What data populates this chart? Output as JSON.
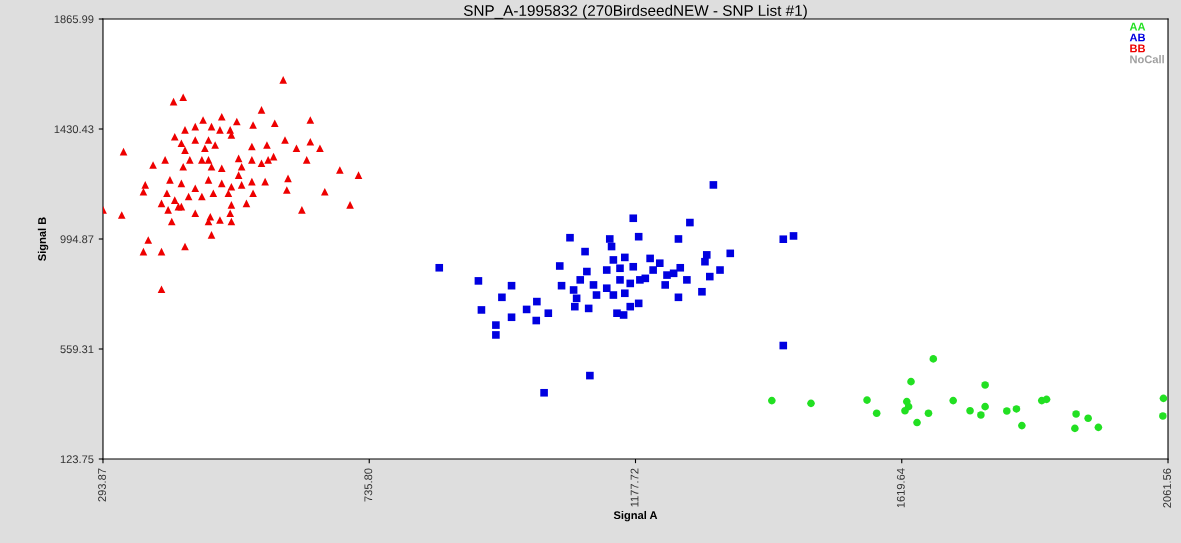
{
  "chart_data": {
    "type": "scatter",
    "title": "SNP_A-1995832 (270BirdseedNEW - SNP List #1)",
    "xlabel": "Signal A",
    "ylabel": "Signal B",
    "xlim": [
      293.87,
      2061.56
    ],
    "xticks": [
      293.87,
      {
        "value": 735.8,
        "label": "735.80"
      },
      1177.72,
      1619.64,
      2061.56
    ],
    "ylim": [
      123.75,
      1865.99
    ],
    "yticks": [
      123.75,
      559.31,
      994.87,
      1430.43,
      1865.99
    ],
    "grid": false,
    "legend": "top right",
    "series": [
      {
        "name": "AA",
        "color": "#22e022",
        "marker": "circle",
        "x": [
          1404,
          1469,
          1562,
          1578,
          1672,
          1635,
          1628,
          1631,
          1625,
          1645,
          1664,
          1705,
          1758,
          1733,
          1758,
          1751,
          1794,
          1810,
          1819,
          1852,
          1860,
          1909,
          1929,
          1907,
          1946,
          2054,
          2053
        ],
        "values": [
          355,
          344,
          357,
          305,
          520,
          430,
          351,
          331,
          315,
          268,
          305,
          355,
          417,
          315,
          331,
          298,
          314,
          322,
          256,
          355,
          360,
          302,
          285,
          245,
          249,
          364,
          294
        ]
      },
      {
        "name": "AB",
        "color": "#0000e0",
        "marker": "square",
        "x": [
          1307,
          1174,
          1268,
          1069,
          1135,
          1183,
          1249,
          1138,
          1094,
          1423,
          1440,
          1335,
          1296,
          852,
          1052,
          1141,
          1160,
          1202,
          1218,
          1252,
          1174,
          1293,
          1318,
          917,
          972,
          1097,
          1086,
          1108,
          1130,
          1152,
          1169,
          1185,
          1207,
          1230,
          1241,
          1263,
          1301,
          1227,
          1055,
          956,
          1075,
          1080,
          1113,
          1141,
          1160,
          1249,
          1288,
          922,
          997,
          1014,
          1033,
          1077,
          1100,
          1147,
          1158,
          1183,
          1169,
          972,
          1013,
          946,
          946,
          1423,
          1102,
          1026,
          1194,
          1130,
          1152
        ],
        "values": [
          1209,
          1077,
          1060,
          1000,
          995,
          1004,
          995,
          965,
          945,
          994,
          1007,
          938,
          932,
          881,
          888,
          912,
          922,
          918,
          899,
          881,
          885,
          905,
          872,
          829,
          810,
          866,
          833,
          813,
          800,
          833,
          819,
          833,
          872,
          852,
          859,
          833,
          846,
          813,
          810,
          764,
          793,
          760,
          773,
          773,
          780,
          764,
          786,
          714,
          716,
          747,
          701,
          727,
          720,
          701,
          694,
          740,
          727,
          685,
          672,
          654,
          615,
          573,
          454,
          386,
          839,
          872,
          879
        ]
      },
      {
        "name": "BB",
        "color": "#ee0000",
        "marker": "triangle",
        "x": [
          593,
          411,
          427,
          557,
          638,
          491,
          516,
          543,
          579,
          460,
          447,
          430,
          474,
          488,
          505,
          413,
          424,
          447,
          469,
          507,
          328,
          596,
          615,
          638,
          654,
          541,
          566,
          577,
          463,
          480,
          430,
          377,
          397,
          427,
          438,
          458,
          474,
          491,
          519,
          524,
          541,
          557,
          568,
          632,
          687,
          718,
          364,
          405,
          424,
          447,
          469,
          491,
          507,
          524,
          541,
          563,
          601,
          599,
          662,
          361,
          400,
          413,
          436,
          458,
          477,
          502,
          543,
          294,
          325,
          402,
          424,
          447,
          472,
          505,
          507,
          532,
          624,
          704,
          408,
          469,
          391,
          507,
          488,
          369,
          361,
          391,
          430,
          474,
          391,
          469,
          419,
          519
        ],
        "values": [
          1625,
          1539,
          1556,
          1506,
          1466,
          1479,
          1460,
          1446,
          1453,
          1466,
          1440,
          1427,
          1440,
          1427,
          1427,
          1400,
          1374,
          1387,
          1387,
          1407,
          1341,
          1387,
          1354,
          1380,
          1354,
          1361,
          1367,
          1321,
          1354,
          1367,
          1347,
          1288,
          1308,
          1281,
          1308,
          1308,
          1281,
          1275,
          1314,
          1281,
          1308,
          1295,
          1308,
          1308,
          1268,
          1248,
          1209,
          1229,
          1215,
          1196,
          1229,
          1215,
          1202,
          1209,
          1222,
          1222,
          1235,
          1189,
          1182,
          1182,
          1176,
          1149,
          1163,
          1163,
          1176,
          1176,
          1176,
          1110,
          1090,
          1110,
          1123,
          1097,
          1083,
          1097,
          1064,
          1136,
          1110,
          1130,
          1064,
          1064,
          1136,
          1130,
          1070,
          991,
          945,
          945,
          965,
          1011,
          796,
          1308,
          1123,
          1248
        ]
      },
      {
        "name": "NoCall",
        "color": "#a0a0a0",
        "marker": "circle"
      }
    ]
  }
}
